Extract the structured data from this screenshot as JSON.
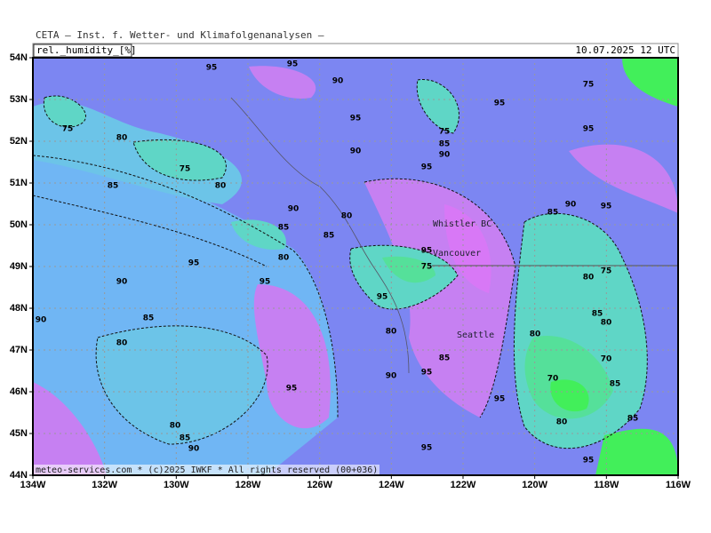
{
  "header": {
    "title": "CETA — Inst. f. Wetter- und Klimafolgenanalysen —",
    "variable": "rel._humidity_[%]",
    "valid": "10.07.2025 12 UTC"
  },
  "footer": "meteo-services.com * (c)2025 IWKF * All rights reserved (00+036)",
  "lat_labels": [
    "54N",
    "53N",
    "52N",
    "51N",
    "50N",
    "49N",
    "48N",
    "47N",
    "46N",
    "45N",
    "44N"
  ],
  "lon_labels": [
    "134W",
    "132W",
    "130W",
    "128W",
    "126W",
    "124W",
    "122W",
    "120W",
    "118W",
    "116W"
  ],
  "places": [
    "Whistler BC",
    "Vancouver",
    "Seattle"
  ],
  "contour_labels": [
    95,
    95,
    90,
    95,
    75,
    80,
    90,
    95,
    75,
    80,
    85,
    90,
    80,
    85,
    85,
    95,
    90,
    95,
    80,
    75,
    95,
    95,
    90,
    85,
    80,
    80,
    95,
    90,
    95,
    85,
    95,
    80,
    85,
    90,
    95,
    95,
    95,
    75,
    90,
    95,
    85,
    80,
    75,
    85,
    80,
    80,
    70,
    70,
    85,
    80,
    85,
    95,
    75,
    85,
    90
  ]
}
